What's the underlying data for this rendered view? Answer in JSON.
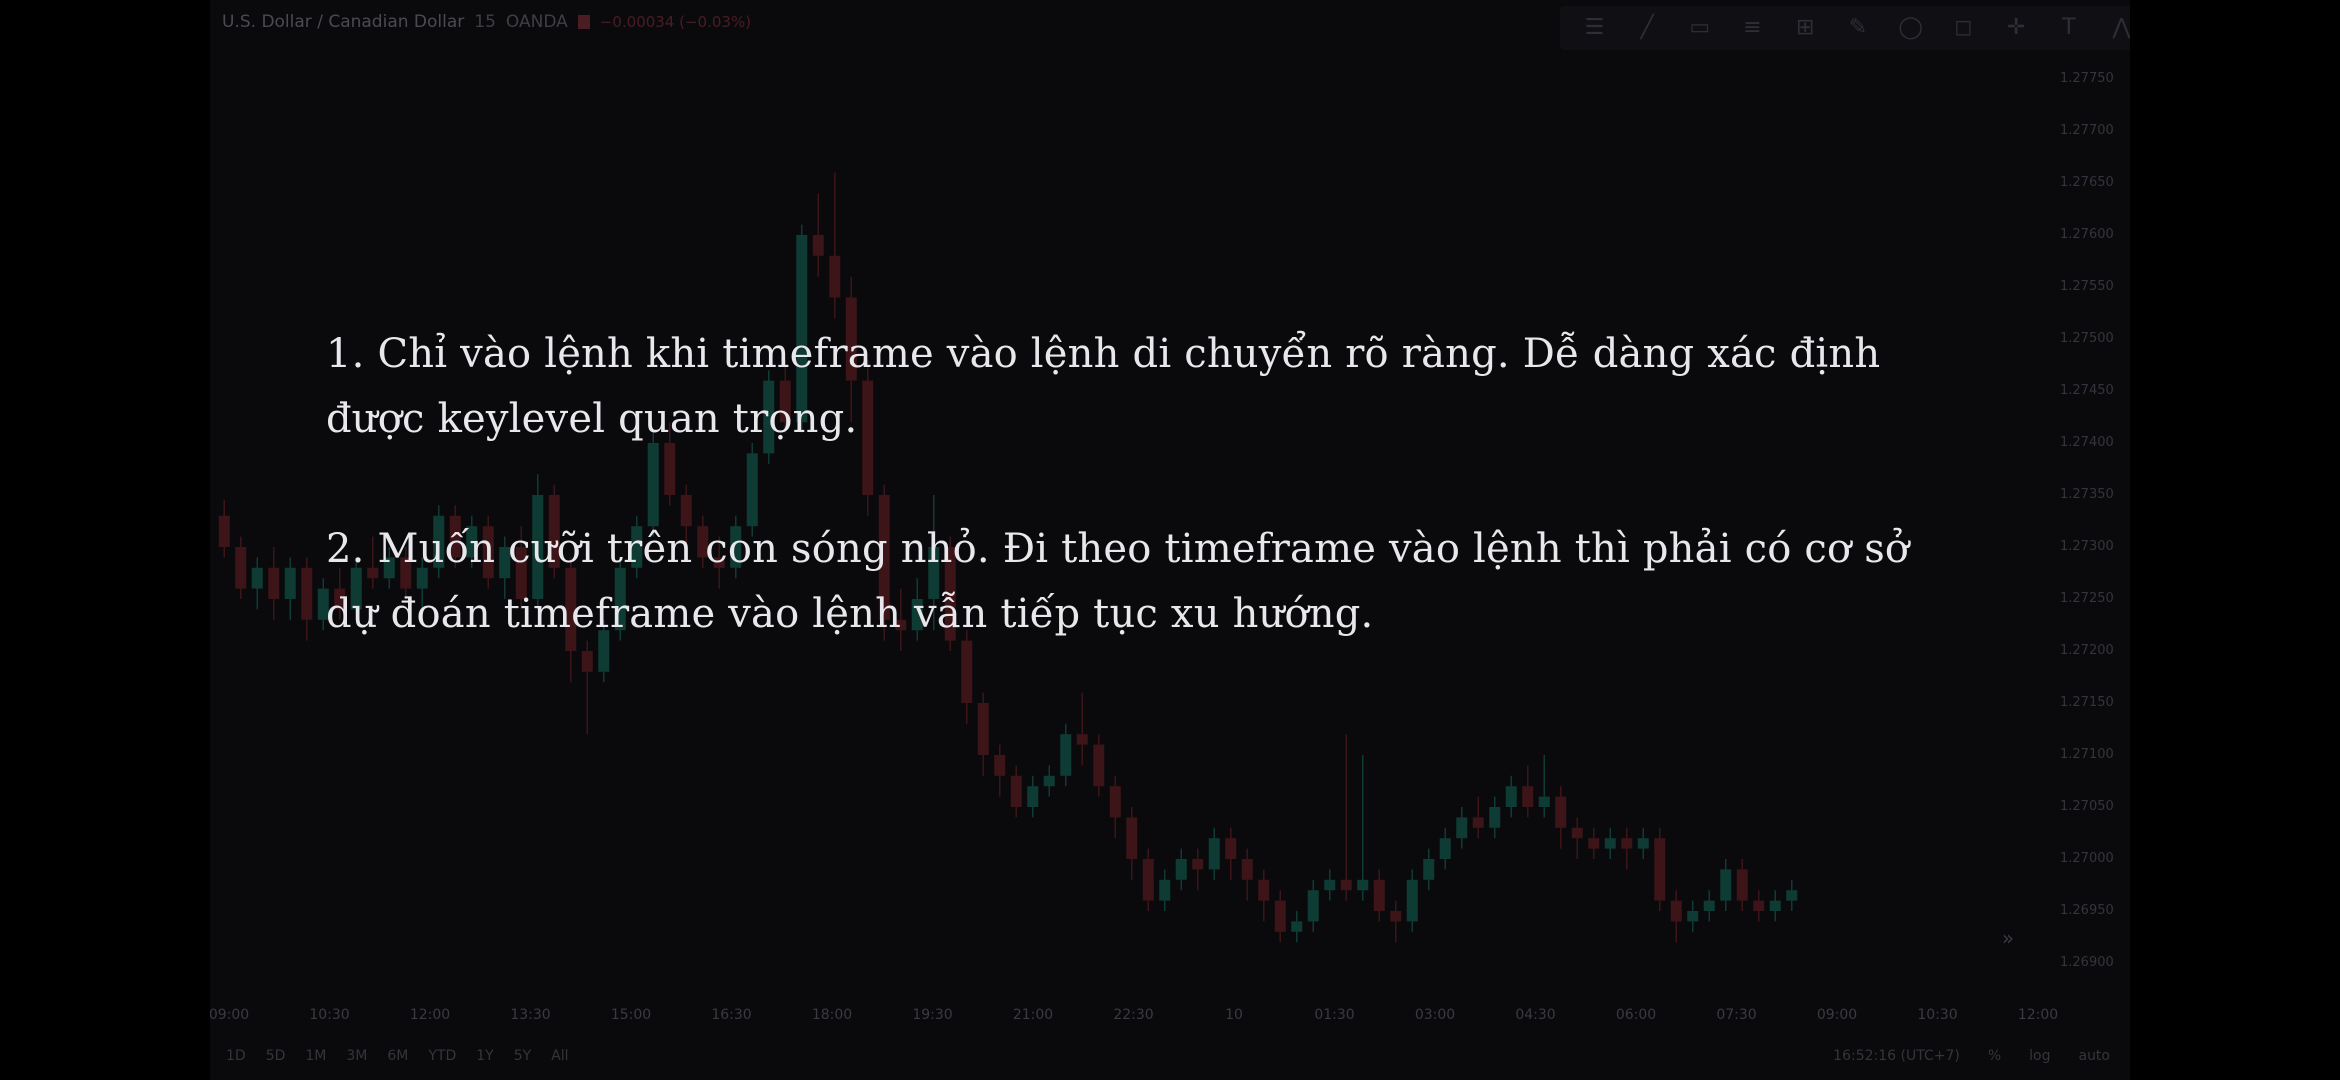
{
  "header": {
    "symbol": "U.S. Dollar / Canadian Dollar",
    "interval": "15",
    "exchange": "OANDA",
    "change": "−0.00034 (−0.03%)"
  },
  "toolbar": {
    "icons": [
      "menu-icon",
      "trend-line-icon",
      "rectangle-icon",
      "fib-icon",
      "gann-icon",
      "brush-icon",
      "ellipse-icon",
      "callout-icon",
      "crosshair-icon",
      "text-icon",
      "pattern-icon"
    ]
  },
  "price_axis": [
    "1.27750",
    "1.27700",
    "1.27650",
    "1.27600",
    "1.27550",
    "1.27500",
    "1.27450",
    "1.27400",
    "1.27350",
    "1.27300",
    "1.27250",
    "1.27200",
    "1.27150",
    "1.27100",
    "1.27050",
    "1.27000",
    "1.26950",
    "1.26900"
  ],
  "time_axis": [
    "09:00",
    "10:30",
    "12:00",
    "13:30",
    "15:00",
    "16:30",
    "18:00",
    "19:30",
    "21:00",
    "22:30",
    "10",
    "01:30",
    "03:00",
    "04:30",
    "06:00",
    "07:30",
    "09:00",
    "10:30",
    "12:00"
  ],
  "bottom_bar": {
    "ranges": [
      "1D",
      "5D",
      "1M",
      "3M",
      "6M",
      "YTD",
      "1Y",
      "5Y",
      "All"
    ],
    "clock": "16:52:16 (UTC+7)",
    "percent": "%",
    "log": "log",
    "auto": "auto"
  },
  "colors": {
    "up": "#0f3b35",
    "down": "#3d1418",
    "text": "#e8e8ec",
    "background": "#0a0a0d"
  },
  "chart_data": {
    "type": "candlestick",
    "series": [
      {
        "o": 1.2733,
        "h": 1.27345,
        "c": 1.273,
        "l": 1.2729
      },
      {
        "o": 1.273,
        "h": 1.2731,
        "c": 1.2726,
        "l": 1.2725
      },
      {
        "o": 1.2726,
        "h": 1.2729,
        "c": 1.2728,
        "l": 1.2724
      },
      {
        "o": 1.2728,
        "h": 1.273,
        "c": 1.2725,
        "l": 1.2723
      },
      {
        "o": 1.2725,
        "h": 1.2729,
        "c": 1.2728,
        "l": 1.2723
      },
      {
        "o": 1.2728,
        "h": 1.2729,
        "c": 1.2723,
        "l": 1.2721
      },
      {
        "o": 1.2723,
        "h": 1.2727,
        "c": 1.2726,
        "l": 1.2722
      },
      {
        "o": 1.2726,
        "h": 1.2728,
        "c": 1.2724,
        "l": 1.2723
      },
      {
        "o": 1.2724,
        "h": 1.2729,
        "c": 1.2728,
        "l": 1.2723
      },
      {
        "o": 1.2728,
        "h": 1.2731,
        "c": 1.2727,
        "l": 1.2726
      },
      {
        "o": 1.2727,
        "h": 1.273,
        "c": 1.2729,
        "l": 1.2726
      },
      {
        "o": 1.2729,
        "h": 1.273,
        "c": 1.2726,
        "l": 1.2725
      },
      {
        "o": 1.2726,
        "h": 1.2729,
        "c": 1.2728,
        "l": 1.2724
      },
      {
        "o": 1.2728,
        "h": 1.2734,
        "c": 1.2733,
        "l": 1.2727
      },
      {
        "o": 1.2733,
        "h": 1.2734,
        "c": 1.2729,
        "l": 1.2728
      },
      {
        "o": 1.2729,
        "h": 1.2733,
        "c": 1.2732,
        "l": 1.2728
      },
      {
        "o": 1.2732,
        "h": 1.2733,
        "c": 1.2727,
        "l": 1.2726
      },
      {
        "o": 1.2727,
        "h": 1.2731,
        "c": 1.273,
        "l": 1.2725
      },
      {
        "o": 1.273,
        "h": 1.2732,
        "c": 1.2725,
        "l": 1.2724
      },
      {
        "o": 1.2725,
        "h": 1.2737,
        "c": 1.2735,
        "l": 1.2724
      },
      {
        "o": 1.2735,
        "h": 1.2736,
        "c": 1.2728,
        "l": 1.2727
      },
      {
        "o": 1.2728,
        "h": 1.2729,
        "c": 1.272,
        "l": 1.2717
      },
      {
        "o": 1.272,
        "h": 1.2721,
        "c": 1.2718,
        "l": 1.2712
      },
      {
        "o": 1.2718,
        "h": 1.2723,
        "c": 1.2722,
        "l": 1.2717
      },
      {
        "o": 1.2722,
        "h": 1.2729,
        "c": 1.2728,
        "l": 1.2721
      },
      {
        "o": 1.2728,
        "h": 1.2733,
        "c": 1.2732,
        "l": 1.2727
      },
      {
        "o": 1.2732,
        "h": 1.2741,
        "c": 1.274,
        "l": 1.2731
      },
      {
        "o": 1.274,
        "h": 1.2742,
        "c": 1.2735,
        "l": 1.2734
      },
      {
        "o": 1.2735,
        "h": 1.2736,
        "c": 1.2732,
        "l": 1.273
      },
      {
        "o": 1.2732,
        "h": 1.2733,
        "c": 1.2729,
        "l": 1.2728
      },
      {
        "o": 1.2729,
        "h": 1.2731,
        "c": 1.2728,
        "l": 1.2726
      },
      {
        "o": 1.2728,
        "h": 1.2733,
        "c": 1.2732,
        "l": 1.2727
      },
      {
        "o": 1.2732,
        "h": 1.274,
        "c": 1.2739,
        "l": 1.2731
      },
      {
        "o": 1.2739,
        "h": 1.2747,
        "c": 1.2746,
        "l": 1.2738
      },
      {
        "o": 1.2746,
        "h": 1.2748,
        "c": 1.2742,
        "l": 1.2741
      },
      {
        "o": 1.2742,
        "h": 1.2761,
        "c": 1.276,
        "l": 1.2741
      },
      {
        "o": 1.276,
        "h": 1.2764,
        "c": 1.2758,
        "l": 1.2756
      },
      {
        "o": 1.2758,
        "h": 1.2766,
        "c": 1.2754,
        "l": 1.2752
      },
      {
        "o": 1.2754,
        "h": 1.2756,
        "c": 1.2746,
        "l": 1.2742
      },
      {
        "o": 1.2746,
        "h": 1.2748,
        "c": 1.2735,
        "l": 1.2733
      },
      {
        "o": 1.2735,
        "h": 1.2736,
        "c": 1.2723,
        "l": 1.2721
      },
      {
        "o": 1.2723,
        "h": 1.2726,
        "c": 1.2722,
        "l": 1.272
      },
      {
        "o": 1.2722,
        "h": 1.2727,
        "c": 1.2725,
        "l": 1.2721
      },
      {
        "o": 1.2725,
        "h": 1.2735,
        "c": 1.273,
        "l": 1.2722
      },
      {
        "o": 1.273,
        "h": 1.2731,
        "c": 1.2721,
        "l": 1.272
      },
      {
        "o": 1.2721,
        "h": 1.2722,
        "c": 1.2715,
        "l": 1.2713
      },
      {
        "o": 1.2715,
        "h": 1.2716,
        "c": 1.271,
        "l": 1.2708
      },
      {
        "o": 1.271,
        "h": 1.2711,
        "c": 1.2708,
        "l": 1.2706
      },
      {
        "o": 1.2708,
        "h": 1.2709,
        "c": 1.2705,
        "l": 1.2704
      },
      {
        "o": 1.2705,
        "h": 1.2708,
        "c": 1.2707,
        "l": 1.2704
      },
      {
        "o": 1.2707,
        "h": 1.2709,
        "c": 1.2708,
        "l": 1.2706
      },
      {
        "o": 1.2708,
        "h": 1.2713,
        "c": 1.2712,
        "l": 1.2707
      },
      {
        "o": 1.2712,
        "h": 1.2716,
        "c": 1.2711,
        "l": 1.2709
      },
      {
        "o": 1.2711,
        "h": 1.2712,
        "c": 1.2707,
        "l": 1.2706
      },
      {
        "o": 1.2707,
        "h": 1.2708,
        "c": 1.2704,
        "l": 1.2702
      },
      {
        "o": 1.2704,
        "h": 1.2705,
        "c": 1.27,
        "l": 1.2698
      },
      {
        "o": 1.27,
        "h": 1.2701,
        "c": 1.2696,
        "l": 1.2695
      },
      {
        "o": 1.2696,
        "h": 1.2699,
        "c": 1.2698,
        "l": 1.2695
      },
      {
        "o": 1.2698,
        "h": 1.2701,
        "c": 1.27,
        "l": 1.2697
      },
      {
        "o": 1.27,
        "h": 1.2701,
        "c": 1.2699,
        "l": 1.2697
      },
      {
        "o": 1.2699,
        "h": 1.2703,
        "c": 1.2702,
        "l": 1.2698
      },
      {
        "o": 1.2702,
        "h": 1.2703,
        "c": 1.27,
        "l": 1.2698
      },
      {
        "o": 1.27,
        "h": 1.2701,
        "c": 1.2698,
        "l": 1.2696
      },
      {
        "o": 1.2698,
        "h": 1.2699,
        "c": 1.2696,
        "l": 1.2694
      },
      {
        "o": 1.2696,
        "h": 1.2697,
        "c": 1.2693,
        "l": 1.2692
      },
      {
        "o": 1.2693,
        "h": 1.2695,
        "c": 1.2694,
        "l": 1.2692
      },
      {
        "o": 1.2694,
        "h": 1.2698,
        "c": 1.2697,
        "l": 1.2693
      },
      {
        "o": 1.2697,
        "h": 1.2699,
        "c": 1.2698,
        "l": 1.2696
      },
      {
        "o": 1.2698,
        "h": 1.2712,
        "c": 1.2697,
        "l": 1.2696
      },
      {
        "o": 1.2697,
        "h": 1.271,
        "c": 1.2698,
        "l": 1.2696
      },
      {
        "o": 1.2698,
        "h": 1.2699,
        "c": 1.2695,
        "l": 1.2694
      },
      {
        "o": 1.2695,
        "h": 1.2696,
        "c": 1.2694,
        "l": 1.2692
      },
      {
        "o": 1.2694,
        "h": 1.2699,
        "c": 1.2698,
        "l": 1.2693
      },
      {
        "o": 1.2698,
        "h": 1.2701,
        "c": 1.27,
        "l": 1.2697
      },
      {
        "o": 1.27,
        "h": 1.2703,
        "c": 1.2702,
        "l": 1.2699
      },
      {
        "o": 1.2702,
        "h": 1.2705,
        "c": 1.2704,
        "l": 1.2701
      },
      {
        "o": 1.2704,
        "h": 1.2706,
        "c": 1.2703,
        "l": 1.2702
      },
      {
        "o": 1.2703,
        "h": 1.2706,
        "c": 1.2705,
        "l": 1.2702
      },
      {
        "o": 1.2705,
        "h": 1.2708,
        "c": 1.2707,
        "l": 1.2704
      },
      {
        "o": 1.2707,
        "h": 1.2709,
        "c": 1.2705,
        "l": 1.2704
      },
      {
        "o": 1.2705,
        "h": 1.271,
        "c": 1.2706,
        "l": 1.2704
      },
      {
        "o": 1.2706,
        "h": 1.2707,
        "c": 1.2703,
        "l": 1.2701
      },
      {
        "o": 1.2703,
        "h": 1.2704,
        "c": 1.2702,
        "l": 1.27
      },
      {
        "o": 1.2702,
        "h": 1.2703,
        "c": 1.2701,
        "l": 1.27
      },
      {
        "o": 1.2701,
        "h": 1.2703,
        "c": 1.2702,
        "l": 1.27
      },
      {
        "o": 1.2702,
        "h": 1.2703,
        "c": 1.2701,
        "l": 1.2699
      },
      {
        "o": 1.2701,
        "h": 1.2703,
        "c": 1.2702,
        "l": 1.27
      },
      {
        "o": 1.2702,
        "h": 1.2703,
        "c": 1.2696,
        "l": 1.2695
      },
      {
        "o": 1.2696,
        "h": 1.2697,
        "c": 1.2694,
        "l": 1.2692
      },
      {
        "o": 1.2694,
        "h": 1.2696,
        "c": 1.2695,
        "l": 1.2693
      },
      {
        "o": 1.2695,
        "h": 1.2697,
        "c": 1.2696,
        "l": 1.2694
      },
      {
        "o": 1.2696,
        "h": 1.27,
        "c": 1.2699,
        "l": 1.2695
      },
      {
        "o": 1.2699,
        "h": 1.27,
        "c": 1.2696,
        "l": 1.2695
      },
      {
        "o": 1.2696,
        "h": 1.2697,
        "c": 1.2695,
        "l": 1.2694
      },
      {
        "o": 1.2695,
        "h": 1.2697,
        "c": 1.2696,
        "l": 1.2694
      },
      {
        "o": 1.2696,
        "h": 1.2698,
        "c": 1.2697,
        "l": 1.2695
      }
    ]
  },
  "overlay": {
    "line1": "1. Chỉ vào lệnh khi timeframe vào lệnh di chuyển rõ ràng. Dễ dàng xác định",
    "line2": "được keylevel quan trọng.",
    "line3": "2. Muốn cưỡi trên con sóng nhỏ. Đi theo timeframe vào lệnh thì phải có cơ sở",
    "line4": "dự đoán timeframe vào lệnh vẫn tiếp tục xu hướng."
  }
}
